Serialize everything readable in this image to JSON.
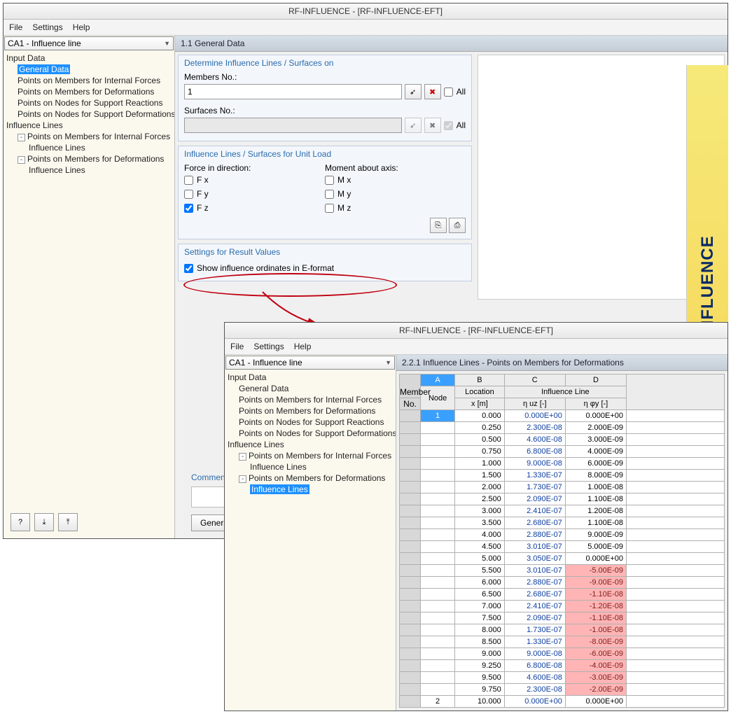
{
  "win1": {
    "title": "RF-INFLUENCE - [RF-INFLUENCE-EFT]",
    "menu": [
      "File",
      "Settings",
      "Help"
    ],
    "combo": "CA1 - Influence line",
    "tree": {
      "root1": "Input Data",
      "r1": [
        "General Data",
        "Points on Members for Internal Forces",
        "Points on Members for Deformations",
        "Points on Nodes for Support Reactions",
        "Points on Nodes for Support Deformations"
      ],
      "root2": "Influence Lines",
      "r2a": "Points on Members for Internal Forces",
      "r2a1": "Influence Lines",
      "r2b": "Points on Members for Deformations",
      "r2b1": "Influence Lines"
    },
    "ctitle": "1.1 General Data",
    "g1": {
      "hdr": "Determine Influence Lines / Surfaces on",
      "members": "Members No.:",
      "memval": "1",
      "surf": "Surfaces No.:",
      "all": "All"
    },
    "g2": {
      "hdr": "Influence Lines / Surfaces for Unit Load",
      "fdir": "Force in direction:",
      "maxis": "Moment about axis:",
      "fx": "F x",
      "fy": "F y",
      "fz": "F z",
      "mx": "M x",
      "my": "M y",
      "mz": "M z"
    },
    "g3": {
      "hdr": "Settings for Result Values",
      "chk": "Show influence ordinates in E-format"
    },
    "comment": "Comment",
    "gen": "Generat",
    "logo": "RF-INFLUENCE"
  },
  "win2": {
    "title": "RF-INFLUENCE - [RF-INFLUENCE-EFT]",
    "menu": [
      "File",
      "Settings",
      "Help"
    ],
    "combo": "CA1 - Influence line",
    "ctitle": "2.2.1 Influence Lines - Points on Members for Deformations",
    "hdr": {
      "member": "Member",
      "no": "No.",
      "node": "Node",
      "loc": "Location",
      "xm": "x [m]",
      "il": "Influence Line",
      "c1": "η uz [-]",
      "c2": "η φy [-]",
      "A": "A",
      "B": "B",
      "C": "C",
      "D": "D"
    },
    "rows": [
      {
        "m": "1",
        "n": "",
        "x": "0.000",
        "a": "0.000E+00",
        "b": "0.000E+00"
      },
      {
        "m": "",
        "n": "",
        "x": "0.250",
        "a": "2.300E-08",
        "b": "2.000E-09"
      },
      {
        "m": "",
        "n": "",
        "x": "0.500",
        "a": "4.600E-08",
        "b": "3.000E-09"
      },
      {
        "m": "",
        "n": "",
        "x": "0.750",
        "a": "6.800E-08",
        "b": "4.000E-09"
      },
      {
        "m": "",
        "n": "",
        "x": "1.000",
        "a": "9.000E-08",
        "b": "6.000E-09"
      },
      {
        "m": "",
        "n": "",
        "x": "1.500",
        "a": "1.330E-07",
        "b": "8.000E-09"
      },
      {
        "m": "",
        "n": "",
        "x": "2.000",
        "a": "1.730E-07",
        "b": "1.000E-08"
      },
      {
        "m": "",
        "n": "",
        "x": "2.500",
        "a": "2.090E-07",
        "b": "1.100E-08"
      },
      {
        "m": "",
        "n": "",
        "x": "3.000",
        "a": "2.410E-07",
        "b": "1.200E-08"
      },
      {
        "m": "",
        "n": "",
        "x": "3.500",
        "a": "2.680E-07",
        "b": "1.100E-08"
      },
      {
        "m": "",
        "n": "",
        "x": "4.000",
        "a": "2.880E-07",
        "b": "9.000E-09"
      },
      {
        "m": "",
        "n": "",
        "x": "4.500",
        "a": "3.010E-07",
        "b": "5.000E-09"
      },
      {
        "m": "",
        "n": "",
        "x": "5.000",
        "a": "3.050E-07",
        "b": "0.000E+00"
      },
      {
        "m": "",
        "n": "",
        "x": "5.500",
        "a": "3.010E-07",
        "b": "-5.00E-09",
        "neg": 1
      },
      {
        "m": "",
        "n": "",
        "x": "6.000",
        "a": "2.880E-07",
        "b": "-9.00E-09",
        "neg": 1
      },
      {
        "m": "",
        "n": "",
        "x": "6.500",
        "a": "2.680E-07",
        "b": "-1.10E-08",
        "neg": 1
      },
      {
        "m": "",
        "n": "",
        "x": "7.000",
        "a": "2.410E-07",
        "b": "-1.20E-08",
        "neg": 1
      },
      {
        "m": "",
        "n": "",
        "x": "7.500",
        "a": "2.090E-07",
        "b": "-1.10E-08",
        "neg": 1
      },
      {
        "m": "",
        "n": "",
        "x": "8.000",
        "a": "1.730E-07",
        "b": "-1.00E-08",
        "neg": 1
      },
      {
        "m": "",
        "n": "",
        "x": "8.500",
        "a": "1.330E-07",
        "b": "-8.00E-09",
        "neg": 1
      },
      {
        "m": "",
        "n": "",
        "x": "9.000",
        "a": "9.000E-08",
        "b": "-6.00E-09",
        "neg": 1
      },
      {
        "m": "",
        "n": "",
        "x": "9.250",
        "a": "6.800E-08",
        "b": "-4.00E-09",
        "neg": 1
      },
      {
        "m": "",
        "n": "",
        "x": "9.500",
        "a": "4.600E-08",
        "b": "-3.00E-09",
        "neg": 1
      },
      {
        "m": "",
        "n": "",
        "x": "9.750",
        "a": "2.300E-08",
        "b": "-2.00E-09",
        "neg": 1
      },
      {
        "m": "",
        "n": "2",
        "x": "10.000",
        "a": "0.000E+00",
        "b": "0.000E+00"
      }
    ]
  }
}
